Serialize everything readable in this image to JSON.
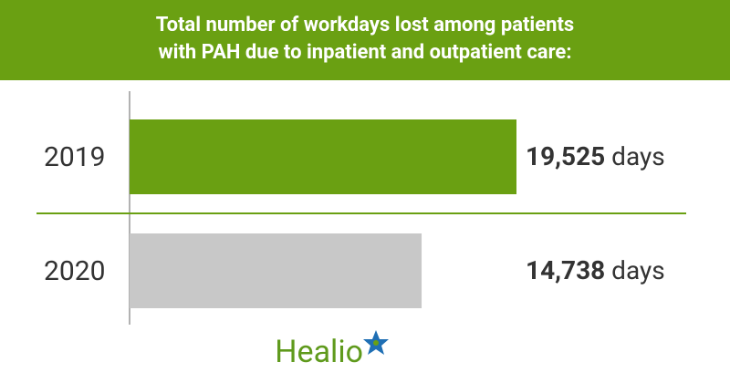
{
  "chart_data": {
    "type": "bar",
    "title": [
      "Total number of workdays lost among patients",
      "with PAH due to inpatient and outpatient care:"
    ],
    "categories": [
      "2019",
      "2020"
    ],
    "values": [
      19525,
      14738
    ],
    "value_labels": [
      "19,525",
      "14,738"
    ],
    "value_unit": "days",
    "colors": [
      "#6aa012",
      "#c8c8c8"
    ],
    "logo": "Healio"
  }
}
